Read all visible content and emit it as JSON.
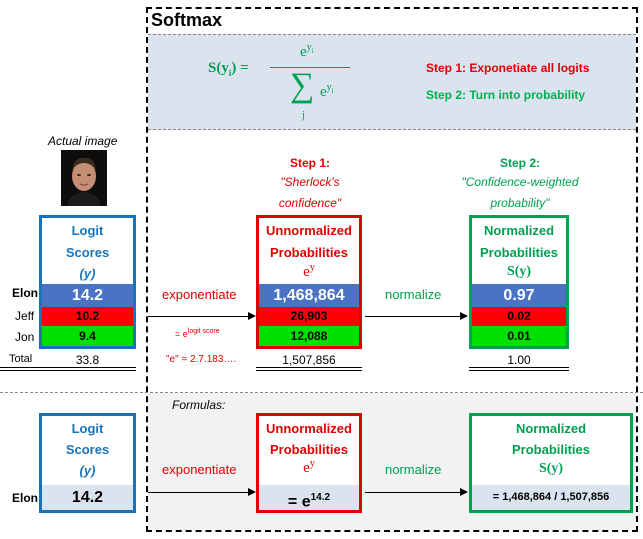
{
  "title": "Softmax",
  "formula": {
    "lhs": "S(y",
    "lhs_sub": "i",
    "lhs_close": ") =",
    "num_base": "e",
    "num_sup": "y",
    "num_sup_sub": "i",
    "sigma": "∑",
    "sum_idx": "j",
    "den_base": "e",
    "den_sup": "y",
    "den_sup_sub": "i"
  },
  "steps": {
    "step1": "Step 1: Exponetiate all logits",
    "step2": "Step 2: Turn into probability"
  },
  "image": {
    "caption": "Actual image"
  },
  "step_headers": {
    "s1_title": "Step 1:",
    "s1_sub1": "\"Sherlock's",
    "s1_sub2": "confidence\"",
    "s2_title": "Step 2:",
    "s2_sub1": "\"Confidence-weighted",
    "s2_sub2": "probability\""
  },
  "logit": {
    "h1": "Logit",
    "h2": "Scores",
    "h3": "(y)",
    "values": [
      "14.2",
      "10.2",
      "9.4"
    ],
    "total": "33.8"
  },
  "unnorm": {
    "h1": "Unnormalized",
    "h2": "Probabilities",
    "h3": "e",
    "h3_sup": "y",
    "values": [
      "1,468,864",
      "26,903",
      "12,088"
    ],
    "total": "1,507,856"
  },
  "norm": {
    "h1": "Normalized",
    "h2": "Probabilities",
    "h3": "S(y)",
    "values": [
      "0.97",
      "0.02",
      "0.01"
    ],
    "total": "1.00"
  },
  "names": [
    "Elon",
    "Jeff",
    "Jon"
  ],
  "total_label": "Total",
  "arrows": {
    "exp": "exponentiate",
    "norm": "normalize"
  },
  "notes": {
    "logit_note": "= e",
    "logit_note_sup": "logit score",
    "e_note": "\"e\" = 2.7.183…."
  },
  "formulas": {
    "label": "Formulas:",
    "elon": "Elon",
    "logit_val": "14.2",
    "exp_val": "= e",
    "exp_sup": "14.2",
    "norm_val": "= 1,468,864 / 1,507,856"
  },
  "colors": {
    "blue": "#1a73b8",
    "red": "#e00000",
    "green": "#00a050",
    "step1": "#e00000",
    "step2": "#00b050",
    "formula": "#00a050"
  }
}
